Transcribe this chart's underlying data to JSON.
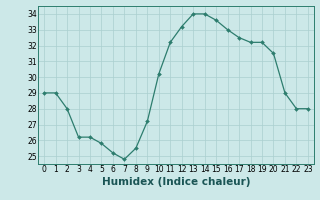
{
  "x": [
    0,
    1,
    2,
    3,
    4,
    5,
    6,
    7,
    8,
    9,
    10,
    11,
    12,
    13,
    14,
    15,
    16,
    17,
    18,
    19,
    20,
    21,
    22,
    23
  ],
  "y": [
    29.0,
    29.0,
    28.0,
    26.2,
    26.2,
    25.8,
    25.2,
    24.8,
    25.5,
    27.2,
    30.2,
    32.2,
    33.2,
    34.0,
    34.0,
    33.6,
    33.0,
    32.5,
    32.2,
    32.2,
    31.5,
    29.0,
    28.0,
    28.0
  ],
  "xlabel": "Humidex (Indice chaleur)",
  "ylim": [
    24.5,
    34.5
  ],
  "xlim": [
    -0.5,
    23.5
  ],
  "yticks": [
    25,
    26,
    27,
    28,
    29,
    30,
    31,
    32,
    33,
    34
  ],
  "xticks": [
    0,
    1,
    2,
    3,
    4,
    5,
    6,
    7,
    8,
    9,
    10,
    11,
    12,
    13,
    14,
    15,
    16,
    17,
    18,
    19,
    20,
    21,
    22,
    23
  ],
  "line_color": "#2d7d6e",
  "marker_color": "#2d7d6e",
  "bg_color": "#cce8e8",
  "grid_color": "#aacfcf",
  "tick_fontsize": 5.5,
  "xlabel_fontsize": 7.5
}
